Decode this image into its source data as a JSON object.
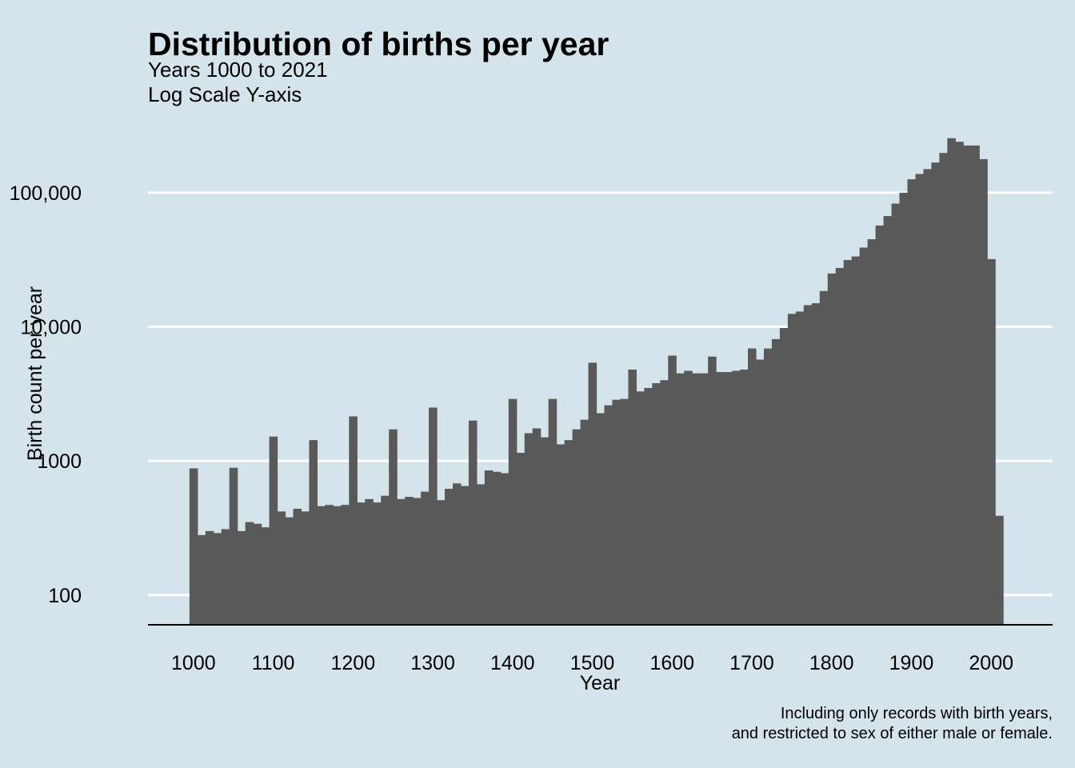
{
  "chart_data": {
    "type": "bar",
    "title": "Distribution of births per year",
    "subtitle_lines": [
      "Years 1000 to 2021",
      "Log Scale Y-axis"
    ],
    "xlabel": "Year",
    "ylabel": "Birth count per year",
    "caption_lines": [
      "Including only records with birth years,",
      "and restricted to sex of either male or female."
    ],
    "y_scale": "log10",
    "ylim": [
      60,
      400000
    ],
    "xlim": [
      943,
      2077
    ],
    "bin_width": 10,
    "grid": "horizontal major lines, white",
    "legend": "none",
    "bar_color": "#595959",
    "background_color": "#d5e4eb",
    "x_ticks": [
      1000,
      1100,
      1200,
      1300,
      1400,
      1500,
      1600,
      1700,
      1800,
      1900,
      2000
    ],
    "x_tick_labels": [
      "1000",
      "1100",
      "1200",
      "1300",
      "1400",
      "1500",
      "1600",
      "1700",
      "1800",
      "1900",
      "2000"
    ],
    "y_ticks": [
      100,
      1000,
      10000,
      100000
    ],
    "y_tick_labels": [
      "100",
      "1000",
      "10,000",
      "100,000"
    ],
    "x": [
      1000,
      1010,
      1020,
      1030,
      1040,
      1050,
      1060,
      1070,
      1080,
      1090,
      1100,
      1110,
      1120,
      1130,
      1140,
      1150,
      1160,
      1170,
      1180,
      1190,
      1200,
      1210,
      1220,
      1230,
      1240,
      1250,
      1260,
      1270,
      1280,
      1290,
      1300,
      1310,
      1320,
      1330,
      1340,
      1350,
      1360,
      1370,
      1380,
      1390,
      1400,
      1410,
      1420,
      1430,
      1440,
      1450,
      1460,
      1470,
      1480,
      1490,
      1500,
      1510,
      1520,
      1530,
      1540,
      1550,
      1560,
      1570,
      1580,
      1590,
      1600,
      1610,
      1620,
      1630,
      1640,
      1650,
      1660,
      1670,
      1680,
      1690,
      1700,
      1710,
      1720,
      1730,
      1740,
      1750,
      1760,
      1770,
      1780,
      1790,
      1800,
      1810,
      1820,
      1830,
      1840,
      1850,
      1860,
      1870,
      1880,
      1890,
      1900,
      1910,
      1920,
      1930,
      1940,
      1950,
      1960,
      1970,
      1980,
      1990,
      2000,
      2010
    ],
    "values": [
      880,
      280,
      300,
      290,
      310,
      890,
      300,
      350,
      340,
      320,
      1520,
      420,
      380,
      440,
      420,
      1430,
      460,
      470,
      460,
      470,
      2150,
      490,
      520,
      490,
      550,
      1720,
      520,
      540,
      530,
      590,
      2500,
      510,
      620,
      680,
      650,
      2000,
      670,
      850,
      830,
      810,
      2900,
      1150,
      1610,
      1750,
      1500,
      2900,
      1330,
      1430,
      1720,
      2030,
      5400,
      2270,
      2600,
      2860,
      2900,
      4800,
      3300,
      3500,
      3800,
      4000,
      6100,
      4500,
      4700,
      4500,
      4500,
      6000,
      4600,
      4600,
      4700,
      4800,
      6900,
      5700,
      6900,
      8100,
      9800,
      12500,
      13000,
      14500,
      15000,
      18500,
      25000,
      27500,
      31500,
      33500,
      39000,
      45000,
      57000,
      67000,
      83000,
      100000,
      126000,
      138000,
      150000,
      168000,
      198000,
      255000,
      240000,
      225000,
      225000,
      178000,
      32000,
      390
    ]
  }
}
